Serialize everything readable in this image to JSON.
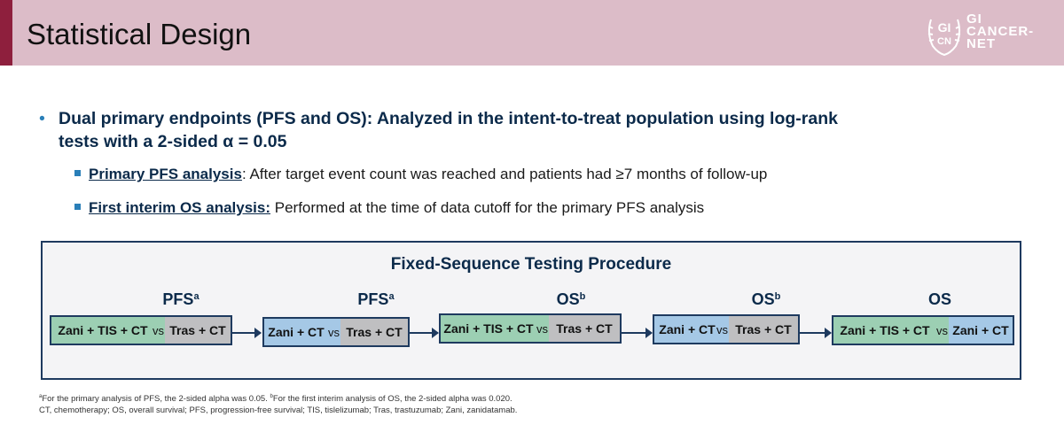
{
  "header": {
    "title": "Statistical Design",
    "logo": {
      "seal_text_top": "GI",
      "seal_text_bottom": "CN",
      "lines": [
        "GI",
        "CANCER-",
        "NET"
      ]
    }
  },
  "bullets": {
    "main": "Dual primary endpoints (PFS and OS): Analyzed in the intent-to-treat population using log-rank tests with a 2-sided α = 0.05",
    "sub": [
      {
        "lead": "Primary PFS analysis",
        "rest": ": After target event count was reached and patients had ≥7 months of follow-up"
      },
      {
        "lead": "First interim OS analysis:",
        "rest": " Performed at the time of data cutoff for the primary PFS analysis"
      }
    ]
  },
  "procedure": {
    "title": "Fixed-Sequence Testing Procedure",
    "steps": [
      {
        "label": "PFS",
        "sup": "a",
        "left": "Zani + TIS + CT",
        "vs": "vs",
        "right": "Tras + CT"
      },
      {
        "label": "PFS",
        "sup": "a",
        "left": "Zani + CT",
        "vs": "vs",
        "right": "Tras + CT"
      },
      {
        "label": "OS",
        "sup": "b",
        "left": "Zani + TIS + CT",
        "vs": "vs",
        "right": "Tras + CT"
      },
      {
        "label": "OS",
        "sup": "b",
        "left": "Zani + CT",
        "vs": "vs",
        "right": "Tras + CT"
      },
      {
        "label": "OS",
        "sup": "",
        "left": "Zani + TIS + CT",
        "vs": "vs",
        "right": "Zani + CT"
      }
    ],
    "colors": {
      "green": "#9ccfb3",
      "blue": "#a5c8e6",
      "gray": "#bfbfc1",
      "navy": "#1e3a5f"
    }
  },
  "footnotes": {
    "sup_a": "a",
    "line1_a": "For the primary analysis of PFS, the 2-sided alpha was 0.05. ",
    "sup_b": "b",
    "line1_b": "For the first interim analysis of OS, the 2-sided alpha was 0.020.",
    "line2": "CT, chemotherapy; OS, overall survival; PFS, progression-free survival; TIS, tislelizumab; Tras, trastuzumab; Zani, zanidatamab."
  },
  "theme": {
    "header_bg": "#dcbcc8",
    "header_accent": "#8e1f3d",
    "heading_color": "#0b2a4a",
    "bullet_color": "#2a7fb8"
  }
}
